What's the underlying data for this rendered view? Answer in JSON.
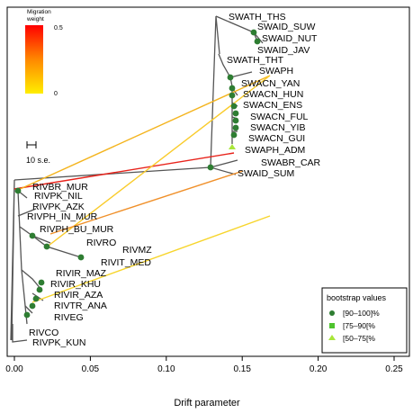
{
  "chart_data": {
    "type": "tree",
    "xlabel": "Drift parameter",
    "xlim": [
      0,
      0.25
    ],
    "x_ticks": [
      "0.00",
      "0.05",
      "0.10",
      "0.15",
      "0.20",
      "0.25"
    ],
    "scale_bar_label": "10 s.e.",
    "migration_legend": {
      "title_line1": "Migration",
      "title_line2": "weight",
      "max_label": "0.5",
      "min_label": "0",
      "colors": [
        "#ff0000",
        "#ff8800",
        "#ffee00"
      ]
    },
    "bootstrap_legend": {
      "title": "bootstrap values",
      "items": [
        {
          "label": "[90–100]%",
          "color": "#2e7d32",
          "shape": "circle"
        },
        {
          "label": "[75–90[%",
          "color": "#4fc42f",
          "shape": "square"
        },
        {
          "label": "[50–75[%",
          "color": "#a8e63a",
          "shape": "triangle"
        }
      ]
    },
    "leaves": [
      {
        "name": "SWATH_THS",
        "drift": 0.128
      },
      {
        "name": "SWAID_SUW",
        "drift": 0.156
      },
      {
        "name": "SWAID_NUT",
        "drift": 0.16
      },
      {
        "name": "SWAID_JAV",
        "drift": 0.161
      },
      {
        "name": "SWATH_THT",
        "drift": 0.13
      },
      {
        "name": "SWAPH",
        "drift": 0.152
      },
      {
        "name": "SWACN_YAN",
        "drift": 0.141
      },
      {
        "name": "SWACN_HUN",
        "drift": 0.142
      },
      {
        "name": "SWACN_ENS",
        "drift": 0.143
      },
      {
        "name": "SWACN_FUL",
        "drift": 0.144
      },
      {
        "name": "SWACN_YIB",
        "drift": 0.144
      },
      {
        "name": "SWACN_GUI",
        "drift": 0.143
      },
      {
        "name": "SWAPH_ADM",
        "drift": 0.143
      },
      {
        "name": "SWABR_CAR",
        "drift": 0.163
      },
      {
        "name": "SWAID_SUM",
        "drift": 0.133
      },
      {
        "name": "RIVBR_MUR",
        "drift": 0.009
      },
      {
        "name": "RIVPK_NIL",
        "drift": 0.009
      },
      {
        "name": "RIVPK_AZK",
        "drift": 0.01
      },
      {
        "name": "RIVPH_IN_MUR",
        "drift": 0.009
      },
      {
        "name": "RIVPH_BU_MUR",
        "drift": 0.015
      },
      {
        "name": "RIVRO",
        "drift": 0.028
      },
      {
        "name": "RIVMZ",
        "drift": 0.05
      },
      {
        "name": "RIVIT_MED",
        "drift": 0.037
      },
      {
        "name": "RIVIR_MAZ",
        "drift": 0.019
      },
      {
        "name": "RIVIR_KHU",
        "drift": 0.022
      },
      {
        "name": "RIVIR_AZA",
        "drift": 0.016
      },
      {
        "name": "RIVTR_ANA",
        "drift": 0.019
      },
      {
        "name": "RIVEG",
        "drift": 0.013
      },
      {
        "name": "RIVCO",
        "drift": 0.008
      },
      {
        "name": "RIVPK_KUN",
        "drift": 0.008
      }
    ]
  }
}
